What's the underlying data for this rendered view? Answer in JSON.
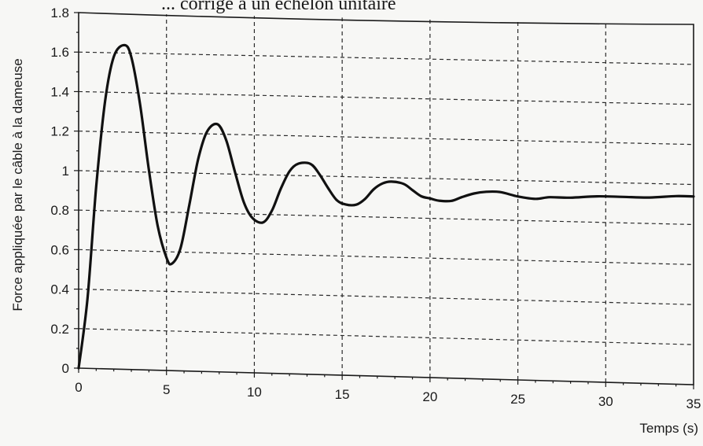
{
  "chart_data": {
    "type": "line",
    "title": "... corrigé à un échelon unitaire",
    "xlabel": "Temps (s)",
    "ylabel": "Force appliquée par le câble à la dameuse",
    "xlim": [
      0,
      35
    ],
    "ylim": [
      0,
      1.8
    ],
    "grid": true,
    "x_ticks": [
      "0",
      "5",
      "10",
      "15",
      "20",
      "25",
      "30",
      "35"
    ],
    "y_ticks": [
      "0",
      "0.2",
      "0.4",
      "0.6",
      "0.8",
      "1",
      "1.2",
      "1.4",
      "1.6",
      "1.8"
    ],
    "series": [
      {
        "x": [
          0,
          0.5,
          1,
          1.5,
          2,
          2.6,
          3,
          3.5,
          4,
          4.5,
          5,
          5.3,
          5.8,
          6.3,
          6.8,
          7.3,
          7.9,
          8.4,
          8.9,
          9.4,
          9.9,
          10.5,
          11.0,
          11.5,
          12.0,
          12.5,
          13.2,
          13.7,
          14.2,
          14.7,
          15.2,
          15.8,
          16.3,
          16.8,
          17.3,
          17.8,
          18.5,
          19.0,
          19.5,
          20.0,
          20.5,
          21.2,
          21.8,
          22.5,
          23.2,
          24.0,
          25.0,
          26.0,
          26.8,
          28.0,
          29.5,
          31.0,
          32.5,
          34.0,
          35.0
        ],
        "y": [
          0,
          0.35,
          0.92,
          1.35,
          1.58,
          1.64,
          1.58,
          1.34,
          1.01,
          0.73,
          0.57,
          0.54,
          0.62,
          0.84,
          1.07,
          1.21,
          1.25,
          1.17,
          1.01,
          0.86,
          0.78,
          0.76,
          0.82,
          0.93,
          1.02,
          1.06,
          1.06,
          1.01,
          0.94,
          0.88,
          0.86,
          0.86,
          0.89,
          0.94,
          0.97,
          0.98,
          0.97,
          0.94,
          0.91,
          0.9,
          0.89,
          0.89,
          0.91,
          0.93,
          0.94,
          0.94,
          0.92,
          0.91,
          0.92,
          0.92,
          0.93,
          0.93,
          0.93,
          0.94,
          0.94
        ]
      }
    ]
  }
}
